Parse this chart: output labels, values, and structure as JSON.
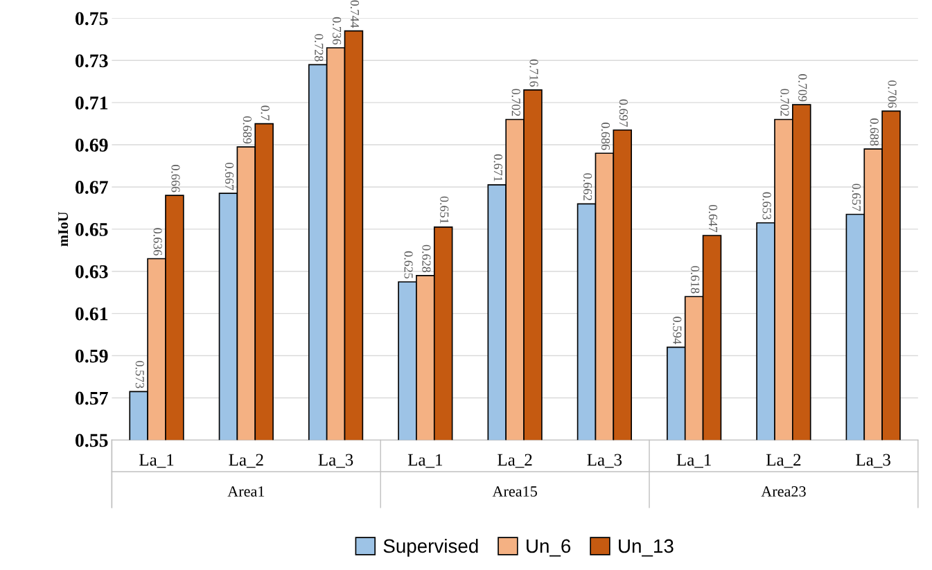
{
  "chart_data": {
    "type": "bar",
    "ylabel": "mIoU",
    "categories": [
      "La_1",
      "La_2",
      "La_3",
      "La_1",
      "La_2",
      "La_3",
      "La_1",
      "La_2",
      "La_3"
    ],
    "annotations": [
      "Area1",
      "Area15",
      "Area23"
    ],
    "series": [
      {
        "name": "Supervised",
        "color": "#9dc3e6",
        "values": [
          0.573,
          0.667,
          0.728,
          0.625,
          0.671,
          0.662,
          0.594,
          0.653,
          0.657
        ]
      },
      {
        "name": "Un_6",
        "color": "#f4b183",
        "values": [
          0.636,
          0.689,
          0.736,
          0.628,
          0.702,
          0.686,
          0.618,
          0.702,
          0.688
        ]
      },
      {
        "name": "Un_13",
        "color": "#c55a11",
        "values": [
          0.666,
          0.7,
          0.744,
          0.651,
          0.716,
          0.697,
          0.647,
          0.709,
          0.706
        ]
      }
    ],
    "ylim": [
      0.55,
      0.75
    ],
    "yticks": [
      0.55,
      0.57,
      0.59,
      0.61,
      0.63,
      0.65,
      0.67,
      0.69,
      0.71,
      0.73,
      0.75
    ],
    "grid": "y",
    "legend": "bottom",
    "data_labels": true
  }
}
